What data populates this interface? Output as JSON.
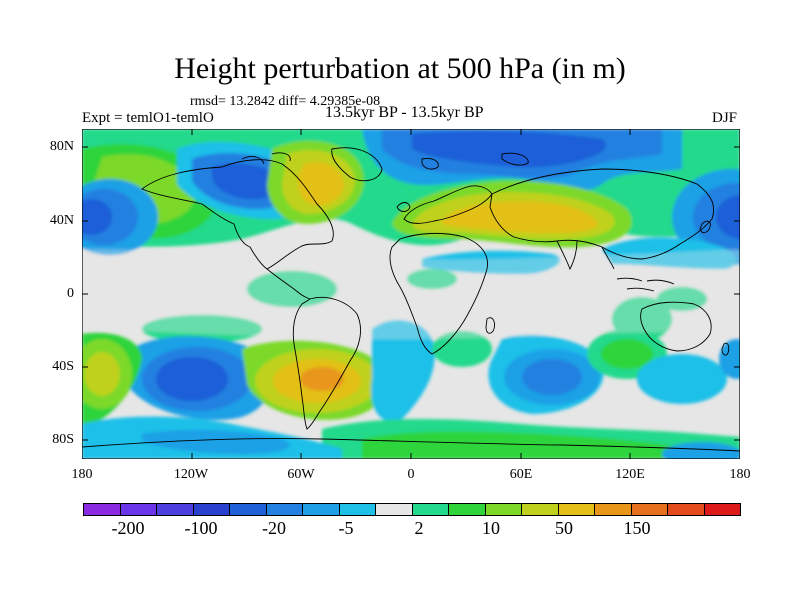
{
  "title": "Height perturbation at 500 hPa (in m)",
  "stats": "rmsd= 13.2842 diff= 4.29385e-08",
  "experiment": "Expt = temlO1-temlO",
  "period": "13.5kyr BP - 13.5kyr BP",
  "season": "DJF",
  "lat_labels": [
    "80N",
    "40N",
    "0",
    "40S",
    "80S"
  ],
  "lon_labels": [
    "180",
    "120W",
    "60W",
    "0",
    "60E",
    "120E",
    "180"
  ],
  "colorbar": {
    "colors": [
      "#8A2BE2",
      "#6A35E8",
      "#4E3FE0",
      "#2A41D0",
      "#1E5FD8",
      "#2180E0",
      "#1FA0E6",
      "#1FC0E8",
      "#E6E6E6",
      "#22D98C",
      "#2ED43A",
      "#7CD92A",
      "#BFD11C",
      "#E3C018",
      "#E8961A",
      "#E6701C",
      "#E34A1C",
      "#DD1A1A"
    ],
    "labels": [
      "-200",
      "-100",
      "-20",
      "-5",
      "2",
      "10",
      "50",
      "150"
    ]
  }
}
